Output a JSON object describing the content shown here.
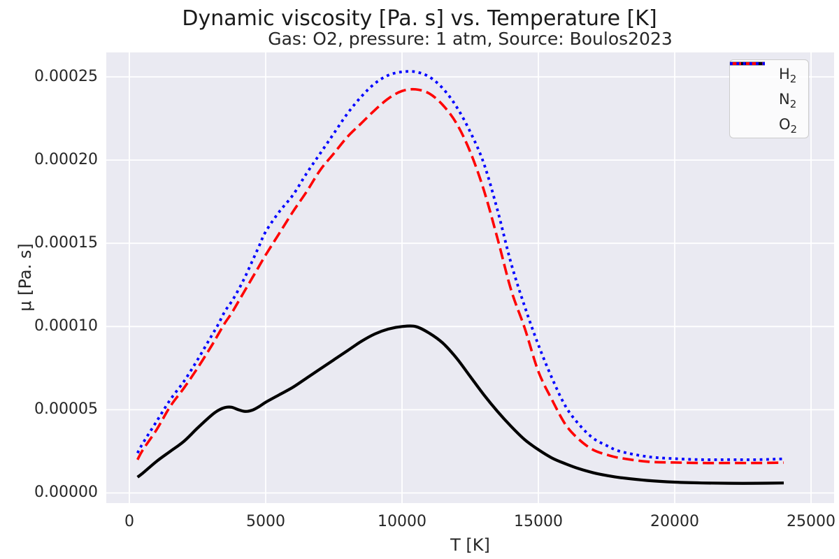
{
  "figure": {
    "title": "Dynamic viscosity [Pa. s] vs. Temperature [K]",
    "subtitle": "Gas: O2, pressure: 1 atm, Source: Boulos2023"
  },
  "chart_data": {
    "type": "line",
    "title": "Dynamic viscosity [Pa. s] vs. Temperature [K]",
    "subtitle": "Gas: O2, pressure: 1 atm, Source: Boulos2023",
    "xlabel": "T [K]",
    "ylabel": "μ [Pa. s]",
    "xlim": [
      -846,
      25846
    ],
    "ylim": [
      -6.1e-06,
      0.0002647
    ],
    "grid": true,
    "background_color": "#eaeaf2",
    "grid_color": "#ffffff",
    "text_color": "#262626",
    "legend_position": "upper right",
    "x_ticks": {
      "values": [
        0,
        5000,
        10000,
        15000,
        20000,
        25000
      ],
      "labels": [
        "0",
        "5000",
        "10000",
        "15000",
        "20000",
        "25000"
      ]
    },
    "y_ticks": {
      "values": [
        0,
        5e-05,
        0.0001,
        0.00015,
        0.0002,
        0.00025
      ],
      "labels": [
        "0.00000",
        "0.00005",
        "0.00010",
        "0.00015",
        "0.00020",
        "0.00025"
      ]
    },
    "x": [
      300,
      500,
      1000,
      1500,
      2000,
      2500,
      3000,
      3250,
      3500,
      3750,
      4000,
      4250,
      4500,
      4750,
      5000,
      5500,
      6000,
      6500,
      7000,
      7500,
      8000,
      8500,
      9000,
      9500,
      10000,
      10500,
      11000,
      11500,
      12000,
      12500,
      13000,
      13500,
      14000,
      14500,
      15000,
      15500,
      16000,
      16500,
      17000,
      17500,
      18000,
      19000,
      20000,
      21000,
      22000,
      23000,
      24000
    ],
    "series": [
      {
        "name": "H2",
        "label_base": "H",
        "label_sub": "2",
        "color": "#000000",
        "line_style": "solid",
        "values": [
          9.5e-06,
          1.2e-05,
          1.9e-05,
          2.5e-05,
          3.1e-05,
          3.9e-05,
          4.65e-05,
          4.95e-05,
          5.13e-05,
          5.15e-05,
          5e-05,
          4.9e-05,
          4.97e-05,
          5.18e-05,
          5.45e-05,
          5.9e-05,
          6.35e-05,
          6.9e-05,
          7.45e-05,
          8e-05,
          8.55e-05,
          9.1e-05,
          9.55e-05,
          9.85e-05,
          0.0001,
          0.0001,
          9.6e-05,
          9e-05,
          8.1e-05,
          7e-05,
          5.9e-05,
          4.9e-05,
          4e-05,
          3.2e-05,
          2.6e-05,
          2.1e-05,
          1.75e-05,
          1.45e-05,
          1.22e-05,
          1.05e-05,
          9.2e-06,
          7.5e-06,
          6.5e-06,
          6e-06,
          5.8e-06,
          5.8e-06,
          6e-06
        ]
      },
      {
        "name": "N2",
        "label_base": "N",
        "label_sub": "2",
        "color": "#ff0000",
        "line_style": "dashed",
        "values": [
          2e-05,
          2.6e-05,
          3.8e-05,
          5.2e-05,
          6.3e-05,
          7.5e-05,
          8.8e-05,
          9.5e-05,
          0.000102,
          0.000108,
          0.000115,
          0.000122,
          0.000129,
          0.000136,
          0.000143,
          0.000156,
          0.000169,
          0.000181,
          0.000194,
          0.000204,
          0.000214,
          0.000222,
          0.00023,
          0.000237,
          0.0002415,
          0.0002425,
          0.00024,
          0.000233,
          0.000222,
          0.000205,
          0.000182,
          0.000153,
          0.000122,
          9.9e-05,
          7.3e-05,
          5.6e-05,
          4.1e-05,
          3.2e-05,
          2.6e-05,
          2.3e-05,
          2.1e-05,
          1.88e-05,
          1.83e-05,
          1.8e-05,
          1.8e-05,
          1.8e-05,
          1.82e-05
        ]
      },
      {
        "name": "O2",
        "label_base": "O",
        "label_sub": "2",
        "color": "#0000ff",
        "line_style": "dotted",
        "values": [
          2.4e-05,
          3e-05,
          4.3e-05,
          5.6e-05,
          6.7e-05,
          8e-05,
          9.4e-05,
          0.000101,
          0.000109,
          0.000115,
          0.000122,
          0.00013,
          0.000139,
          0.000148,
          0.000157,
          0.000169,
          0.000179,
          0.000192,
          0.000204,
          0.000216,
          0.000228,
          0.000238,
          0.000246,
          0.000251,
          0.000253,
          0.000253,
          0.00025,
          0.000243,
          0.000232,
          0.000217,
          0.000198,
          0.00017,
          0.000138,
          0.000112,
          8.9e-05,
          6.9e-05,
          5.2e-05,
          4.1e-05,
          3.3e-05,
          2.85e-05,
          2.5e-05,
          2.18e-05,
          2.06e-05,
          2e-05,
          2e-05,
          2e-05,
          2.05e-05
        ]
      }
    ]
  }
}
